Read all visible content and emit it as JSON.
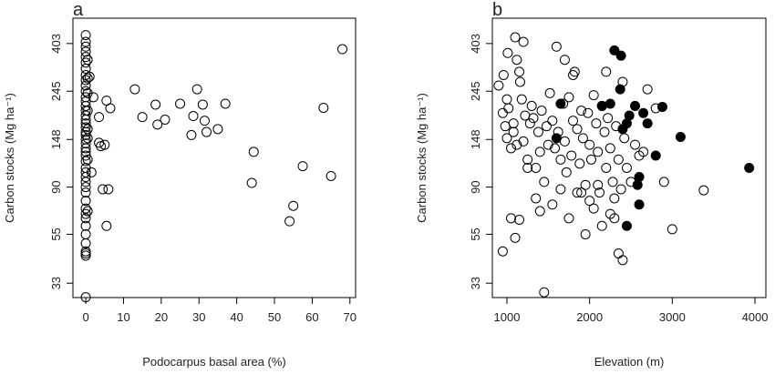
{
  "chart_data": [
    {
      "type": "scatter",
      "title": "a",
      "x_label": "Podocarpus basal area (%)",
      "y_label": "Carbon stocks (Mg ha⁻¹)",
      "log_y": true,
      "xlim": [
        -3.4,
        71.5
      ],
      "ylim": [
        28.4,
        525
      ],
      "xticks": [
        0,
        10,
        20,
        30,
        40,
        50,
        60,
        70
      ],
      "yticks": [
        33,
        55,
        90,
        148,
        245,
        403
      ],
      "series": [
        {
          "color": "#000000",
          "filled": false,
          "x": [
            0,
            0,
            0,
            0,
            0,
            0,
            0,
            0,
            0,
            0,
            0,
            0,
            0,
            0,
            0,
            0,
            0,
            0,
            0,
            0,
            0,
            0,
            0,
            0,
            0,
            0,
            0,
            0,
            0,
            0,
            0,
            0,
            0,
            0,
            0,
            0,
            0,
            0,
            0,
            0,
            0,
            0,
            0,
            0,
            0.5,
            0.5,
            0.5,
            0.5,
            0.5,
            0.5,
            0.5,
            0.5,
            13,
            5.5,
            6.5,
            15,
            18.5,
            19,
            21,
            25,
            28,
            28.5,
            29.5,
            31,
            31.5,
            32,
            35,
            37,
            44.5,
            44,
            54,
            55,
            57.5,
            63,
            65,
            68,
            3.5,
            3.5,
            4,
            5,
            4.5,
            6,
            5.5,
            2,
            1,
            1.5
          ],
          "values": [
            28.5,
            44,
            45,
            46,
            50,
            55,
            60,
            65,
            68,
            72,
            78,
            85,
            90,
            95,
            100,
            105,
            110,
            118,
            125,
            130,
            135,
            142,
            148,
            155,
            160,
            168,
            175,
            182,
            190,
            200,
            210,
            220,
            230,
            245,
            260,
            275,
            290,
            310,
            330,
            350,
            370,
            390,
            410,
            440,
            70,
            120,
            165,
            200,
            240,
            280,
            340,
            150,
            250,
            222,
            205,
            187,
            213,
            173,
            182,
            215,
            155,
            189,
            250,
            213,
            180,
            160,
            165,
            215,
            130,
            94,
            63,
            74,
            112,
            206,
            101,
            380,
            187,
            143,
            138,
            140,
            88,
            88,
            60,
            230,
            285,
            105
          ]
        }
      ]
    },
    {
      "type": "scatter",
      "title": "b",
      "x_label": "Elevation (m)",
      "y_label": "Carbon stocks (Mg ha⁻¹)",
      "log_y": true,
      "xlim": [
        824,
        4132
      ],
      "ylim": [
        28.4,
        525
      ],
      "xticks": [
        1000,
        2000,
        3000,
        4000
      ],
      "yticks": [
        33,
        55,
        90,
        148,
        245,
        403
      ],
      "series": [
        {
          "color": "#000000",
          "filled": false,
          "x": [
            900,
            950,
            980,
            1000,
            1020,
            1050,
            1080,
            1100,
            1120,
            1150,
            1180,
            1200,
            1220,
            1250,
            1280,
            1300,
            1320,
            1350,
            1380,
            1400,
            1420,
            1450,
            1480,
            1500,
            1520,
            1550,
            1580,
            1600,
            1620,
            1650,
            1680,
            1700,
            1720,
            1750,
            1780,
            1800,
            1820,
            1850,
            1880,
            1900,
            1920,
            1950,
            1980,
            2000,
            2020,
            2050,
            2080,
            2100,
            2120,
            2150,
            2180,
            2200,
            2220,
            2250,
            2280,
            2300,
            2320,
            2350,
            2380,
            2400,
            2420,
            2450,
            2500,
            2550,
            2600,
            2650,
            2700,
            2800,
            2900,
            3000,
            3380,
            950,
            1000,
            1050,
            1100,
            1150,
            1250,
            1350,
            1400,
            1450,
            1550,
            1650,
            1750,
            1850,
            1950,
            2050,
            2150,
            2250,
            2350,
            1080,
            1120,
            1200,
            1700,
            1800,
            2200,
            2300,
            2400,
            1900,
            2000,
            2100,
            960,
            1010,
            1160
          ],
          "values": [
            260,
            195,
            170,
            150,
            205,
            135,
            175,
            430,
            140,
            300,
            225,
            145,
            190,
            120,
            175,
            210,
            185,
            110,
            160,
            130,
            200,
            95,
            170,
            140,
            240,
            180,
            135,
            390,
            160,
            120,
            215,
            145,
            105,
            230,
            125,
            180,
            300,
            165,
            115,
            200,
            150,
            92,
            195,
            140,
            120,
            235,
            175,
            130,
            85,
            210,
            160,
            110,
            185,
            135,
            95,
            80,
            170,
            120,
            88,
            270,
            150,
            110,
            95,
            140,
            125,
            130,
            250,
            205,
            95,
            58,
            87,
            46,
            225,
            65,
            53,
            64,
            110,
            80,
            70,
            30,
            75,
            88,
            65,
            85,
            55,
            72,
            60,
            68,
            45,
            160,
            340,
            410,
            340,
            290,
            300,
            65,
            42,
            85,
            78,
            92,
            290,
            365,
            270
          ]
        },
        {
          "color": "#000000",
          "filled": true,
          "x": [
            2300,
            2380,
            2370,
            2250,
            1650,
            2150,
            2550,
            2650,
            2480,
            2450,
            2700,
            2400,
            2880,
            3100,
            1600,
            2800,
            3930,
            2600,
            2580,
            2600,
            2450
          ],
          "values": [
            375,
            355,
            250,
            215,
            215,
            210,
            210,
            195,
            190,
            175,
            175,
            165,
            208,
            152,
            150,
            125,
            110,
            100,
            92,
            75,
            60
          ]
        }
      ]
    }
  ]
}
